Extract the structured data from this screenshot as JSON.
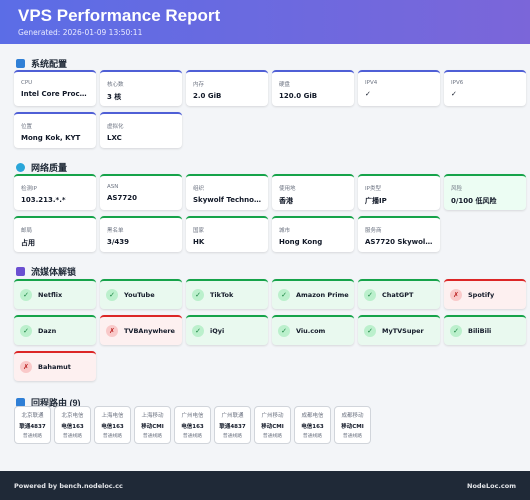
{
  "header": {
    "title": "VPS Performance Report",
    "generated": "Generated: 2026-01-09 13:50:11"
  },
  "system": {
    "title": "系统配置",
    "cards": [
      {
        "label": "CPU",
        "value": "Intel Core Processo..."
      },
      {
        "label": "核心数",
        "value": "3 核"
      },
      {
        "label": "内存",
        "value": "2.0 GiB"
      },
      {
        "label": "硬盘",
        "value": "120.0 GiB"
      },
      {
        "label": "IPV4",
        "value": "✓"
      },
      {
        "label": "IPV6",
        "value": "✓"
      },
      {
        "label": "位置",
        "value": "Mong Kok, KYT"
      },
      {
        "label": "虚拟化",
        "value": "LXC"
      }
    ]
  },
  "network": {
    "title": "网络质量",
    "cards": [
      {
        "label": "检测IP",
        "value": "103.213.*.*"
      },
      {
        "label": "ASN",
        "value": "AS7720"
      },
      {
        "label": "组织",
        "value": "Skywolf Technolog..."
      },
      {
        "label": "使用地",
        "value": "香港"
      },
      {
        "label": "IP类型",
        "value": "广播IP"
      },
      {
        "label": "风险",
        "value": "0/100 低风险"
      },
      {
        "label": "邮局",
        "value": "占用"
      },
      {
        "label": "黑名单",
        "value": "3/439"
      },
      {
        "label": "国家",
        "value": "HK"
      },
      {
        "label": "城市",
        "value": "Hong Kong"
      },
      {
        "label": "服务商",
        "value": "AS7720 Skywolf Te..."
      }
    ]
  },
  "streaming": {
    "title": "流媒体解锁",
    "items": [
      {
        "name": "Netflix",
        "ok": true
      },
      {
        "name": "YouTube",
        "ok": true
      },
      {
        "name": "TikTok",
        "ok": true
      },
      {
        "name": "Amazon Prime",
        "ok": true
      },
      {
        "name": "ChatGPT",
        "ok": true
      },
      {
        "name": "Spotify",
        "ok": false
      },
      {
        "name": "Dazn",
        "ok": true
      },
      {
        "name": "TVBAnywhere",
        "ok": false
      },
      {
        "name": "iQyi",
        "ok": true
      },
      {
        "name": "Viu.com",
        "ok": true
      },
      {
        "name": "MyTVSuper",
        "ok": true
      },
      {
        "name": "BiliBili",
        "ok": true
      },
      {
        "name": "Bahamut",
        "ok": false
      }
    ],
    "ok_symbol": "✓",
    "no_symbol": "✗"
  },
  "routes": {
    "title": "回程路由 (9)",
    "items": [
      {
        "from": "北京联通",
        "to": "联通4837",
        "type": "普通线路"
      },
      {
        "from": "北京电信",
        "to": "电信163",
        "type": "普通线路"
      },
      {
        "from": "上海电信",
        "to": "电信163",
        "type": "普通线路"
      },
      {
        "from": "上海移动",
        "to": "移动CMI",
        "type": "普通线路"
      },
      {
        "from": "广州电信",
        "to": "电信163",
        "type": "普通线路"
      },
      {
        "from": "广州联通",
        "to": "联通4837",
        "type": "普通线路"
      },
      {
        "from": "广州移动",
        "to": "移动CMI",
        "type": "普通线路"
      },
      {
        "from": "成都电信",
        "to": "电信163",
        "type": "普通线路"
      },
      {
        "from": "成都移动",
        "to": "移动CMI",
        "type": "普通线路"
      }
    ]
  },
  "footer": {
    "left": "Powered by bench.nodeloc.cc",
    "right": "NodeLoc.com"
  },
  "colors": {
    "accent": "#5b6de6",
    "ok": "#16a34a",
    "fail": "#dc2626",
    "footer_bg": "#1f2937"
  },
  "icons": {
    "system": "server-icon",
    "network": "globe-icon",
    "streaming": "film-icon",
    "routes": "route-icon"
  }
}
